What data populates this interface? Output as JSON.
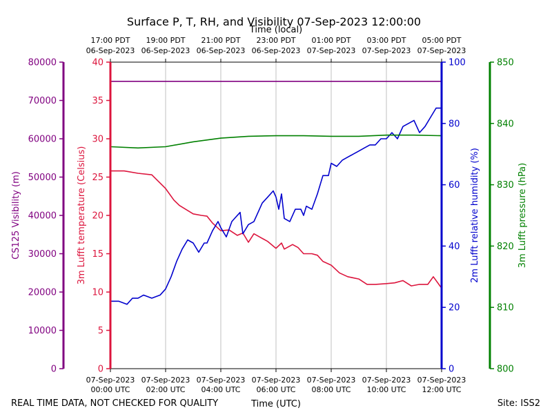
{
  "chart_data": {
    "type": "line",
    "title": "Surface P, T, RH, and Visibility 07-Sep-2023 12:00:00",
    "xlabel": "Time (UTC)",
    "xlabel_top": "Time (local)",
    "x_ticks_utc": [
      {
        "hour": 0,
        "date": "07-Sep-2023",
        "time": "00:00 UTC"
      },
      {
        "hour": 2,
        "date": "07-Sep-2023",
        "time": "02:00 UTC"
      },
      {
        "hour": 4,
        "date": "07-Sep-2023",
        "time": "04:00 UTC"
      },
      {
        "hour": 6,
        "date": "07-Sep-2023",
        "time": "06:00 UTC"
      },
      {
        "hour": 8,
        "date": "07-Sep-2023",
        "time": "08:00 UTC"
      },
      {
        "hour": 10,
        "date": "07-Sep-2023",
        "time": "10:00 UTC"
      },
      {
        "hour": 12,
        "date": "07-Sep-2023",
        "time": "12:00 UTC"
      }
    ],
    "x_ticks_local": [
      {
        "hour": 0,
        "time": "17:00 PDT",
        "date": "06-Sep-2023"
      },
      {
        "hour": 2,
        "time": "19:00 PDT",
        "date": "06-Sep-2023"
      },
      {
        "hour": 4,
        "time": "21:00 PDT",
        "date": "06-Sep-2023"
      },
      {
        "hour": 6,
        "time": "23:00 PDT",
        "date": "06-Sep-2023"
      },
      {
        "hour": 8,
        "time": "01:00 PDT",
        "date": "07-Sep-2023"
      },
      {
        "hour": 10,
        "time": "03:00 PDT",
        "date": "07-Sep-2023"
      },
      {
        "hour": 12,
        "time": "05:00 PDT",
        "date": "07-Sep-2023"
      }
    ],
    "xlim": [
      0,
      12
    ],
    "grid": "vertical",
    "axes": [
      {
        "id": "vis",
        "label": "CS125 Visibility (m)",
        "color": "#800080",
        "side": "left-outer",
        "ylim": [
          0,
          80000
        ],
        "ticks": [
          0,
          10000,
          20000,
          30000,
          40000,
          50000,
          60000,
          70000,
          80000
        ]
      },
      {
        "id": "temp",
        "label": "3m Lufft temperature (Celsius)",
        "color": "#dc143c",
        "side": "left-inner",
        "ylim": [
          0,
          40
        ],
        "ticks": [
          0,
          5,
          10,
          15,
          20,
          25,
          30,
          35,
          40
        ]
      },
      {
        "id": "rh",
        "label": "2m Lufft relative humidity (%)",
        "color": "#0000cd",
        "side": "right-inner",
        "ylim": [
          0,
          100
        ],
        "ticks": [
          0,
          20,
          40,
          60,
          80,
          100
        ]
      },
      {
        "id": "pres",
        "label": "3m Lufft pressure (hPa)",
        "color": "#008000",
        "side": "right-outer",
        "ylim": [
          800,
          850
        ],
        "ticks": [
          800,
          810,
          820,
          830,
          840,
          850
        ]
      }
    ],
    "series": [
      {
        "axis": "vis",
        "color": "#800080",
        "x": [
          0,
          12
        ],
        "y": [
          75000,
          75000
        ]
      },
      {
        "axis": "temp",
        "color": "#dc143c",
        "x": [
          0,
          0.5,
          1,
          1.5,
          2,
          2.3,
          2.5,
          3,
          3.3,
          3.5,
          3.7,
          4,
          4.3,
          4.6,
          4.8,
          5,
          5.2,
          5.4,
          5.7,
          6,
          6.2,
          6.3,
          6.6,
          6.8,
          7,
          7.3,
          7.5,
          7.7,
          8,
          8.3,
          8.6,
          9,
          9.3,
          9.6,
          10,
          10.3,
          10.6,
          10.9,
          11.2,
          11.5,
          11.7,
          12
        ],
        "y": [
          25.8,
          25.8,
          25.5,
          25.3,
          23.5,
          22.0,
          21.3,
          20.2,
          20.0,
          19.9,
          19.0,
          18.0,
          18.1,
          17.4,
          17.7,
          16.5,
          17.6,
          17.2,
          16.6,
          15.7,
          16.4,
          15.6,
          16.2,
          15.8,
          15.0,
          15.0,
          14.8,
          14.0,
          13.5,
          12.5,
          12.0,
          11.7,
          11.0,
          11.0,
          11.1,
          11.2,
          11.5,
          10.8,
          11.0,
          11.0,
          12.0,
          10.5
        ]
      },
      {
        "axis": "rh",
        "color": "#0000cd",
        "x": [
          0,
          0.3,
          0.6,
          0.8,
          1,
          1.2,
          1.5,
          1.8,
          2,
          2.2,
          2.4,
          2.6,
          2.8,
          3,
          3.2,
          3.4,
          3.5,
          3.7,
          3.9,
          4,
          4.2,
          4.4,
          4.5,
          4.7,
          4.8,
          5,
          5.2,
          5.5,
          5.7,
          5.9,
          6,
          6.1,
          6.2,
          6.3,
          6.5,
          6.7,
          6.9,
          7,
          7.1,
          7.3,
          7.5,
          7.7,
          7.9,
          8,
          8.2,
          8.4,
          8.6,
          8.8,
          9,
          9.2,
          9.4,
          9.6,
          9.8,
          10,
          10.2,
          10.4,
          10.6,
          10.8,
          11,
          11.2,
          11.4,
          11.6,
          11.8,
          12
        ],
        "y": [
          22,
          22,
          21,
          23,
          23,
          24,
          23,
          24,
          26,
          30,
          35,
          39,
          42,
          41,
          38,
          41,
          41,
          45,
          48,
          46,
          43,
          48,
          49,
          51,
          44,
          47,
          48,
          54,
          56,
          58,
          56,
          52,
          57,
          49,
          48,
          52,
          52,
          50,
          53,
          52,
          57,
          63,
          63,
          67,
          66,
          68,
          69,
          70,
          71,
          72,
          73,
          73,
          75,
          75,
          77,
          75,
          79,
          80,
          81,
          77,
          79,
          82,
          85,
          85
        ]
      },
      {
        "axis": "pres",
        "color": "#008000",
        "x": [
          0,
          1,
          2,
          3,
          4,
          5,
          6,
          7,
          8,
          9,
          10,
          11,
          12
        ],
        "y": [
          836.2,
          836.0,
          836.2,
          837.0,
          837.6,
          837.9,
          838.0,
          838.0,
          837.9,
          837.9,
          838.1,
          838.1,
          838.0
        ]
      }
    ]
  },
  "footer": {
    "left_note": "REAL TIME DATA, NOT CHECKED FOR QUALITY",
    "site": "Site: ISS2"
  }
}
